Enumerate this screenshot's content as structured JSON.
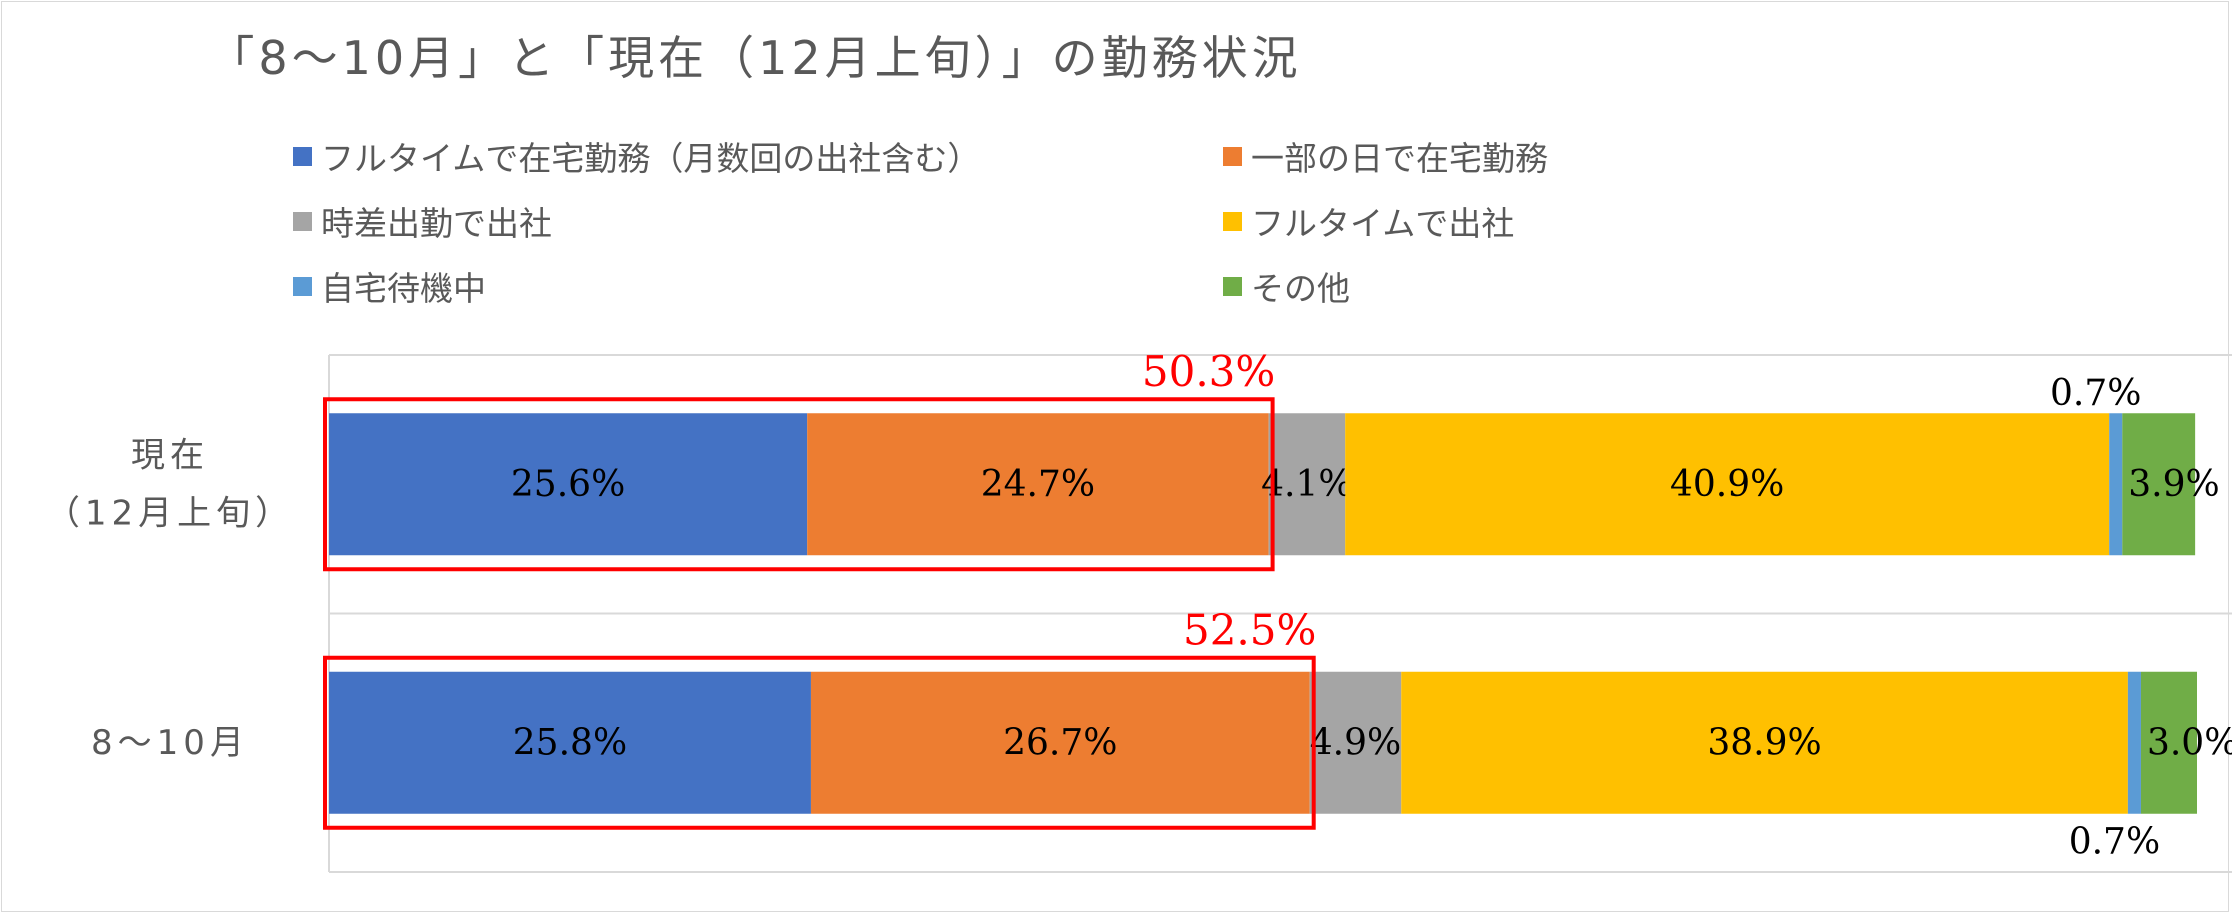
{
  "chart_data": {
    "type": "bar",
    "orientation": "horizontal",
    "stacked": true,
    "title": "「8～10月」と「現在（12月上旬）」の勤務状況",
    "categories": [
      [
        "現在",
        "（12月上旬）"
      ],
      [
        "8～10月"
      ]
    ],
    "series": [
      {
        "name": "フルタイムで在宅勤務（月数回の出社含む）",
        "color": "#4472C4",
        "values": [
          25.6,
          25.8
        ],
        "labels": [
          "25.6%",
          "25.8%"
        ]
      },
      {
        "name": "一部の日で在宅勤務",
        "color": "#ED7D31",
        "values": [
          24.7,
          26.7
        ],
        "labels": [
          "24.7%",
          "26.7%"
        ]
      },
      {
        "name": "時差出勤で出社",
        "color": "#A5A5A5",
        "values": [
          4.1,
          4.9
        ],
        "labels": [
          "4.1%",
          "4.9%"
        ]
      },
      {
        "name": "フルタイムで出社",
        "color": "#FFC000",
        "values": [
          40.9,
          38.9
        ],
        "labels": [
          "40.9%",
          "38.9%"
        ]
      },
      {
        "name": "自宅待機中",
        "color": "#5B9BD5",
        "values": [
          0.7,
          0.7
        ],
        "labels": [
          "0.7%",
          "0.7%"
        ]
      },
      {
        "name": "その他",
        "color": "#70AD47",
        "values": [
          3.9,
          3.0
        ],
        "labels": [
          "3.9%",
          "3.0%"
        ]
      }
    ],
    "annotations": [
      {
        "category_index": 0,
        "text": "50.3%",
        "covers_series": [
          0,
          1
        ],
        "color": "#FF0000"
      },
      {
        "category_index": 1,
        "text": "52.5%",
        "covers_series": [
          0,
          1
        ],
        "color": "#FF0000"
      }
    ],
    "xlim": [
      0,
      100
    ],
    "legend_position": "top",
    "grid": true
  }
}
